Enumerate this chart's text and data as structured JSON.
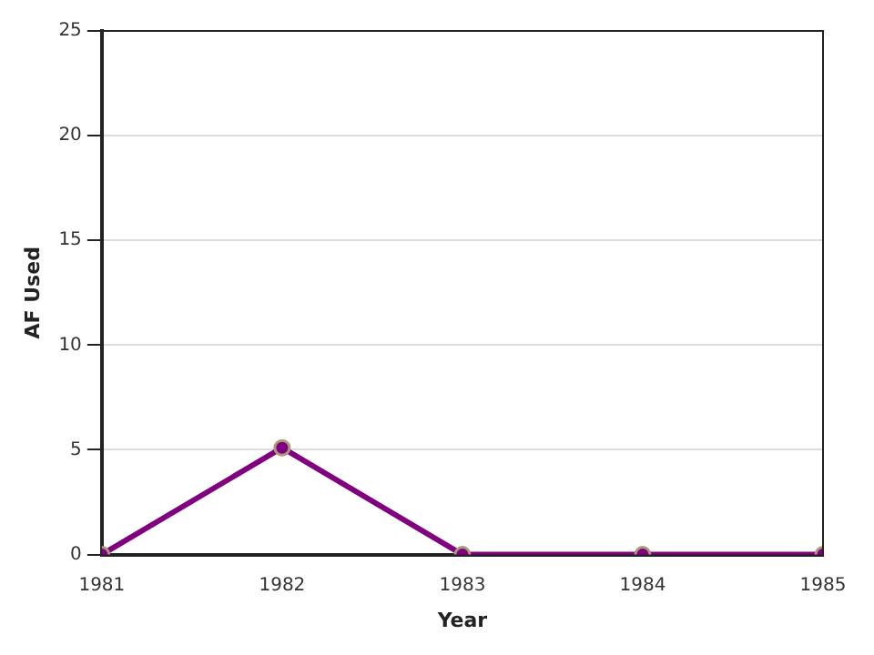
{
  "chart_data": {
    "type": "line",
    "xlabel": "Year",
    "ylabel": "AF Used",
    "x": [
      1981,
      1982,
      1983,
      1984,
      1985
    ],
    "series": [
      {
        "color": "#800080",
        "values": [
          0,
          5.1,
          0,
          0,
          0
        ]
      }
    ],
    "xlim": [
      1981,
      1985
    ],
    "xticks": [
      1981,
      1982,
      1983,
      1984,
      1985
    ],
    "ylim": [
      0,
      25
    ],
    "yticks": [
      0,
      5,
      10,
      15,
      20,
      25
    ],
    "grid": "y",
    "legend": false,
    "marker": "circle",
    "line_style": "solid"
  }
}
